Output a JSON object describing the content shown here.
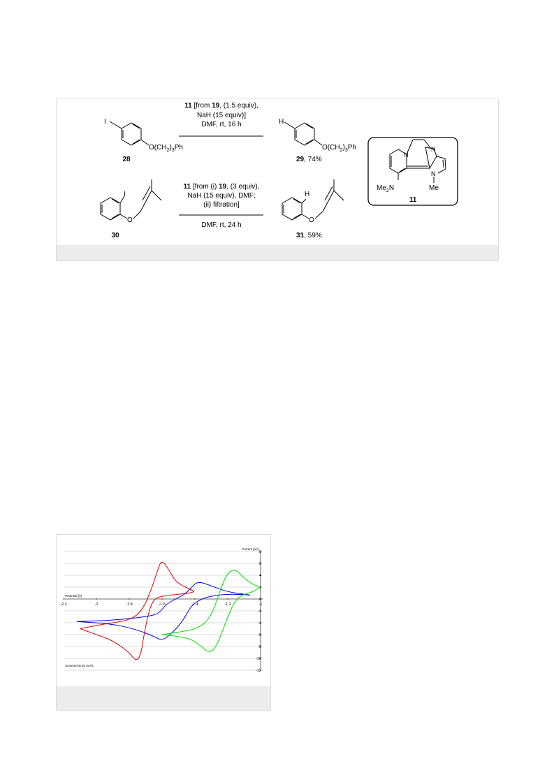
{
  "scheme": {
    "reaction1": {
      "reagent_line1_bold": "11",
      "reagent_line1_a": " [from ",
      "reagent_line1_bold2": "19",
      "reagent_line1_b": ", (1.5 equiv),",
      "reagent_line2": "NaH (15 equiv)]",
      "reagent_line3": "DMF, rt, 16 h",
      "substrate_label": "28",
      "substrate_group": "O(CH",
      "product_label": "29",
      "product_yield": ", 74%",
      "substituent_I": "I",
      "substituent_H": "H",
      "ph_group": "Ph"
    },
    "reaction2": {
      "reagent_line1_bold": "11",
      "reagent_line1_a": " [from (i) ",
      "reagent_line1_bold2": "19",
      "reagent_line1_b": ", (3 equiv),",
      "reagent_line2": "NaH (15 equiv), DMF;",
      "reagent_line3": "(ii) filtration]",
      "reagent_line4": "DMF, rt, 24 h",
      "substrate_label": "30",
      "product_label": "31",
      "product_yield": ", 59%",
      "substituent_I": "I",
      "substituent_H": "H",
      "oxygen": "O"
    },
    "box": {
      "label": "11",
      "n1": "N",
      "n2": "N",
      "n3": "N",
      "me": "Me",
      "me2n": "Me",
      "me2n_sub": "2",
      "me2n_n": "N"
    }
  },
  "cv_chart": {
    "title": "Current [μA]",
    "xlabel": "Potential [V]",
    "note": "Scanned at 50 mV/s",
    "x_ticks": [
      "-2.2",
      "-2",
      "-1.8",
      "-1.6",
      "-1.4",
      "-1.2",
      "-1"
    ],
    "y_ticks": [
      "8",
      "6",
      "4",
      "2",
      "0",
      "-2",
      "-4",
      "-6",
      "-8",
      "-10",
      "-12"
    ]
  },
  "chart_data": {
    "type": "line",
    "title": "Current [μA]",
    "xlabel": "Potential [V]",
    "ylabel": "Current [μA]",
    "xlim": [
      -2.2,
      -1
    ],
    "ylim": [
      -12,
      8
    ],
    "grid": true,
    "series": [
      {
        "color": "#e00000",
        "x": [
          -2.1,
          -1.95,
          -1.8,
          -1.72,
          -1.66,
          -1.62,
          -1.6,
          -1.56,
          -1.52,
          -1.46,
          -1.42,
          -1.4,
          -1.43,
          -1.5,
          -1.6,
          -1.65,
          -1.68,
          -1.71,
          -1.73,
          -1.76,
          -1.8,
          -1.9,
          -2.0,
          -2.1
        ],
        "y": [
          -5,
          -4.2,
          -3.6,
          -2,
          2,
          5.5,
          6.5,
          5,
          3,
          2,
          1.5,
          1.3,
          1,
          0.8,
          0.5,
          0,
          -2,
          -6,
          -9.5,
          -10.5,
          -9,
          -7,
          -6,
          -5
        ]
      },
      {
        "color": "#0000e0",
        "x": [
          -2.12,
          -1.9,
          -1.7,
          -1.62,
          -1.58,
          -1.52,
          -1.46,
          -1.42,
          -1.38,
          -1.3,
          -1.2,
          -1.1,
          -1.05,
          -1.12,
          -1.22,
          -1.3,
          -1.36,
          -1.42,
          -1.48,
          -1.55,
          -1.6,
          -1.65,
          -1.75,
          -1.9,
          -2.12
        ],
        "y": [
          -3.8,
          -3.6,
          -3,
          -2.5,
          -1,
          0,
          0.8,
          2,
          3,
          2.2,
          1.2,
          0.8,
          0.6,
          0.8,
          0.8,
          0.5,
          0,
          -1,
          -4,
          -6,
          -7,
          -6.3,
          -5.2,
          -4.2,
          -3.8
        ]
      },
      {
        "color": "#00e000",
        "x": [
          -1.6,
          -1.5,
          -1.38,
          -1.3,
          -1.24,
          -1.2,
          -1.15,
          -1.1,
          -1.05,
          -1.0,
          -1.05,
          -1.12,
          -1.16,
          -1.2,
          -1.24,
          -1.28,
          -1.32,
          -1.36,
          -1.42,
          -1.5,
          -1.6
        ],
        "y": [
          -6,
          -5.6,
          -5,
          -3,
          2,
          4.5,
          5,
          3.5,
          2.5,
          2,
          1.2,
          0.6,
          -0.5,
          -3,
          -6,
          -8.5,
          -9,
          -8,
          -6.8,
          -6.3,
          -6
        ]
      }
    ]
  }
}
